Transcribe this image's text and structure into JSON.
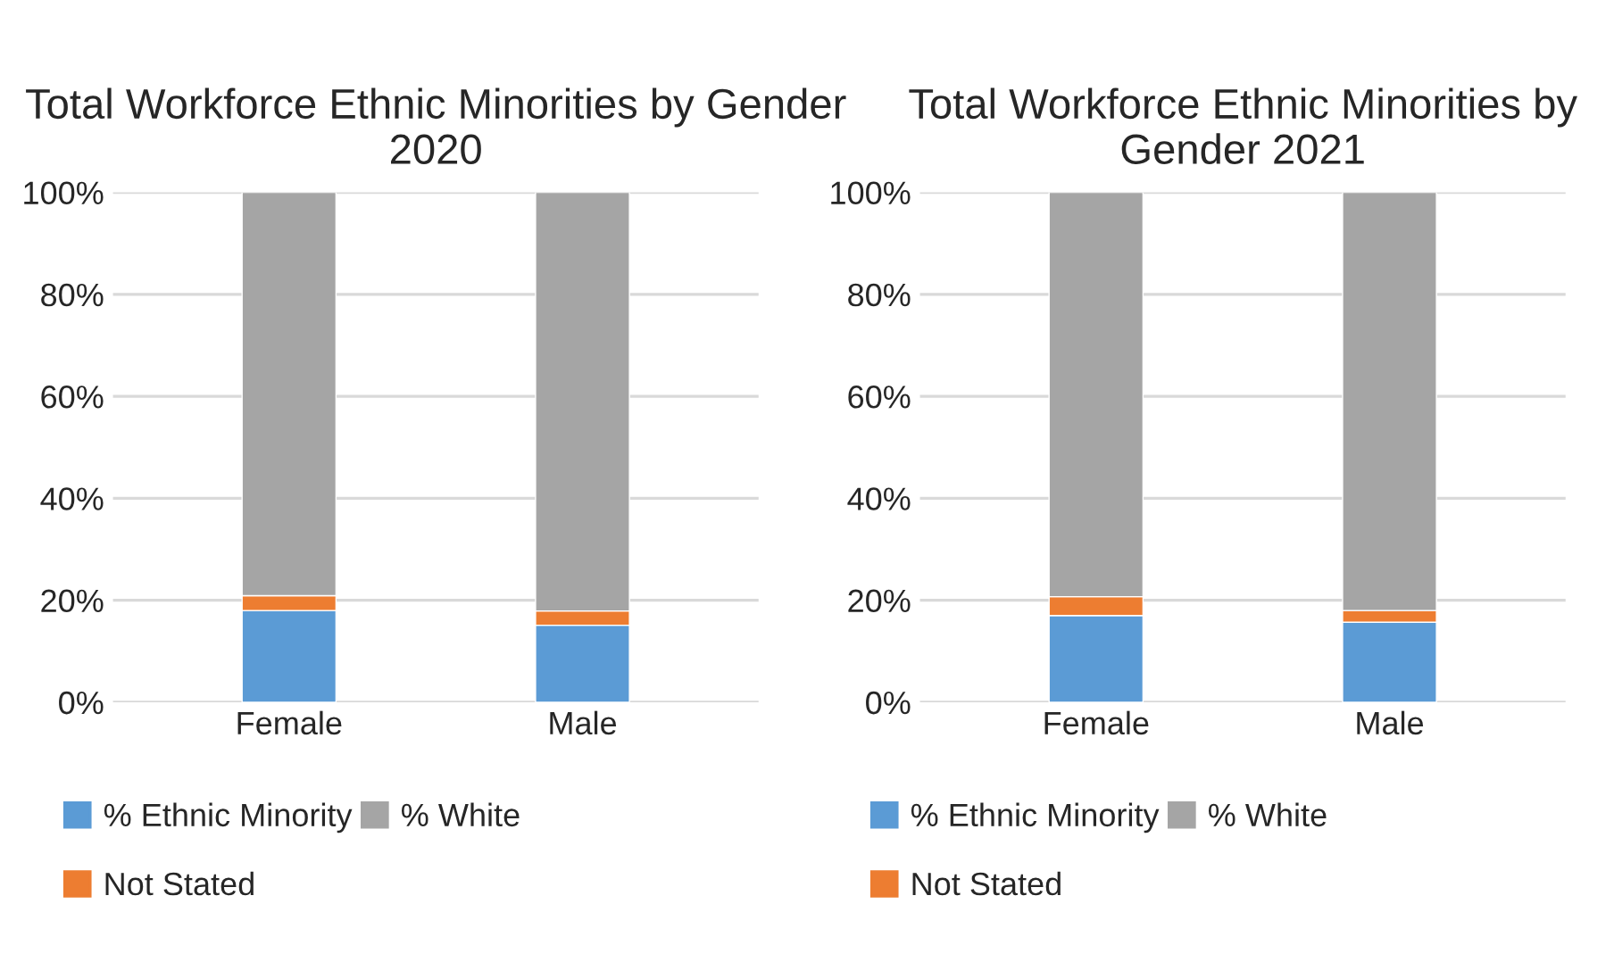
{
  "chart_data": [
    {
      "type": "bar",
      "title": "Total Workforce Ethnic Minorities by Gender 2020",
      "categories": [
        "Female",
        "Male"
      ],
      "stacked": true,
      "ylim": [
        0,
        100
      ],
      "yticks": [
        {
          "value": 0,
          "label": "0%"
        },
        {
          "value": 20,
          "label": "20%"
        },
        {
          "value": 40,
          "label": "40%"
        },
        {
          "value": 60,
          "label": "60%"
        },
        {
          "value": 80,
          "label": "80%"
        },
        {
          "value": 100,
          "label": "100%"
        }
      ],
      "grid": "y",
      "legend": "bottom",
      "series": [
        {
          "name": "% Ethnic Minority",
          "color": "#5b9bd5",
          "values": [
            18.0,
            15.1
          ]
        },
        {
          "name": "Not Stated",
          "color": "#ed7d31",
          "values": [
            2.9,
            2.8
          ]
        },
        {
          "name": "% White",
          "color": "#a5a5a5",
          "values": [
            79.1,
            82.1
          ]
        }
      ]
    },
    {
      "type": "bar",
      "title": "Total Workforce Ethnic Minorities by Gender 2021",
      "categories": [
        "Female",
        "Male"
      ],
      "stacked": true,
      "ylim": [
        0,
        100
      ],
      "yticks": [
        {
          "value": 0,
          "label": "0%"
        },
        {
          "value": 20,
          "label": "20%"
        },
        {
          "value": 40,
          "label": "40%"
        },
        {
          "value": 60,
          "label": "60%"
        },
        {
          "value": 80,
          "label": "80%"
        },
        {
          "value": 100,
          "label": "100%"
        }
      ],
      "grid": "y",
      "legend": "bottom",
      "series": [
        {
          "name": "% Ethnic Minority",
          "color": "#5b9bd5",
          "values": [
            17.0,
            15.7
          ]
        },
        {
          "name": "Not Stated",
          "color": "#ed7d31",
          "values": [
            3.7,
            2.3
          ]
        },
        {
          "name": "% White",
          "color": "#a5a5a5",
          "values": [
            79.3,
            82.0
          ]
        }
      ]
    }
  ]
}
